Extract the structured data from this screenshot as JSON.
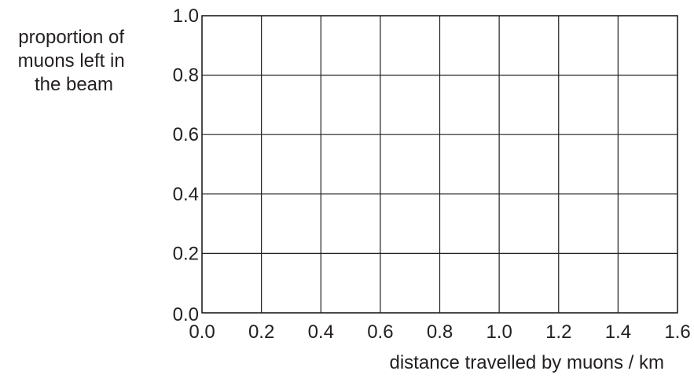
{
  "chart_data": {
    "type": "line",
    "title": "",
    "ylabel_lines": [
      "proportion of",
      "muons left in",
      "the beam"
    ],
    "xlabel": "distance travelled by muons / km",
    "xlim": [
      0.0,
      1.6
    ],
    "ylim": [
      0.0,
      1.0
    ],
    "x_ticks": [
      "0.0",
      "0.2",
      "0.4",
      "0.6",
      "0.8",
      "1.0",
      "1.2",
      "1.4",
      "1.6"
    ],
    "y_ticks": [
      "0.0",
      "0.2",
      "0.4",
      "0.6",
      "0.8",
      "1.0"
    ],
    "grid": true,
    "series": []
  }
}
